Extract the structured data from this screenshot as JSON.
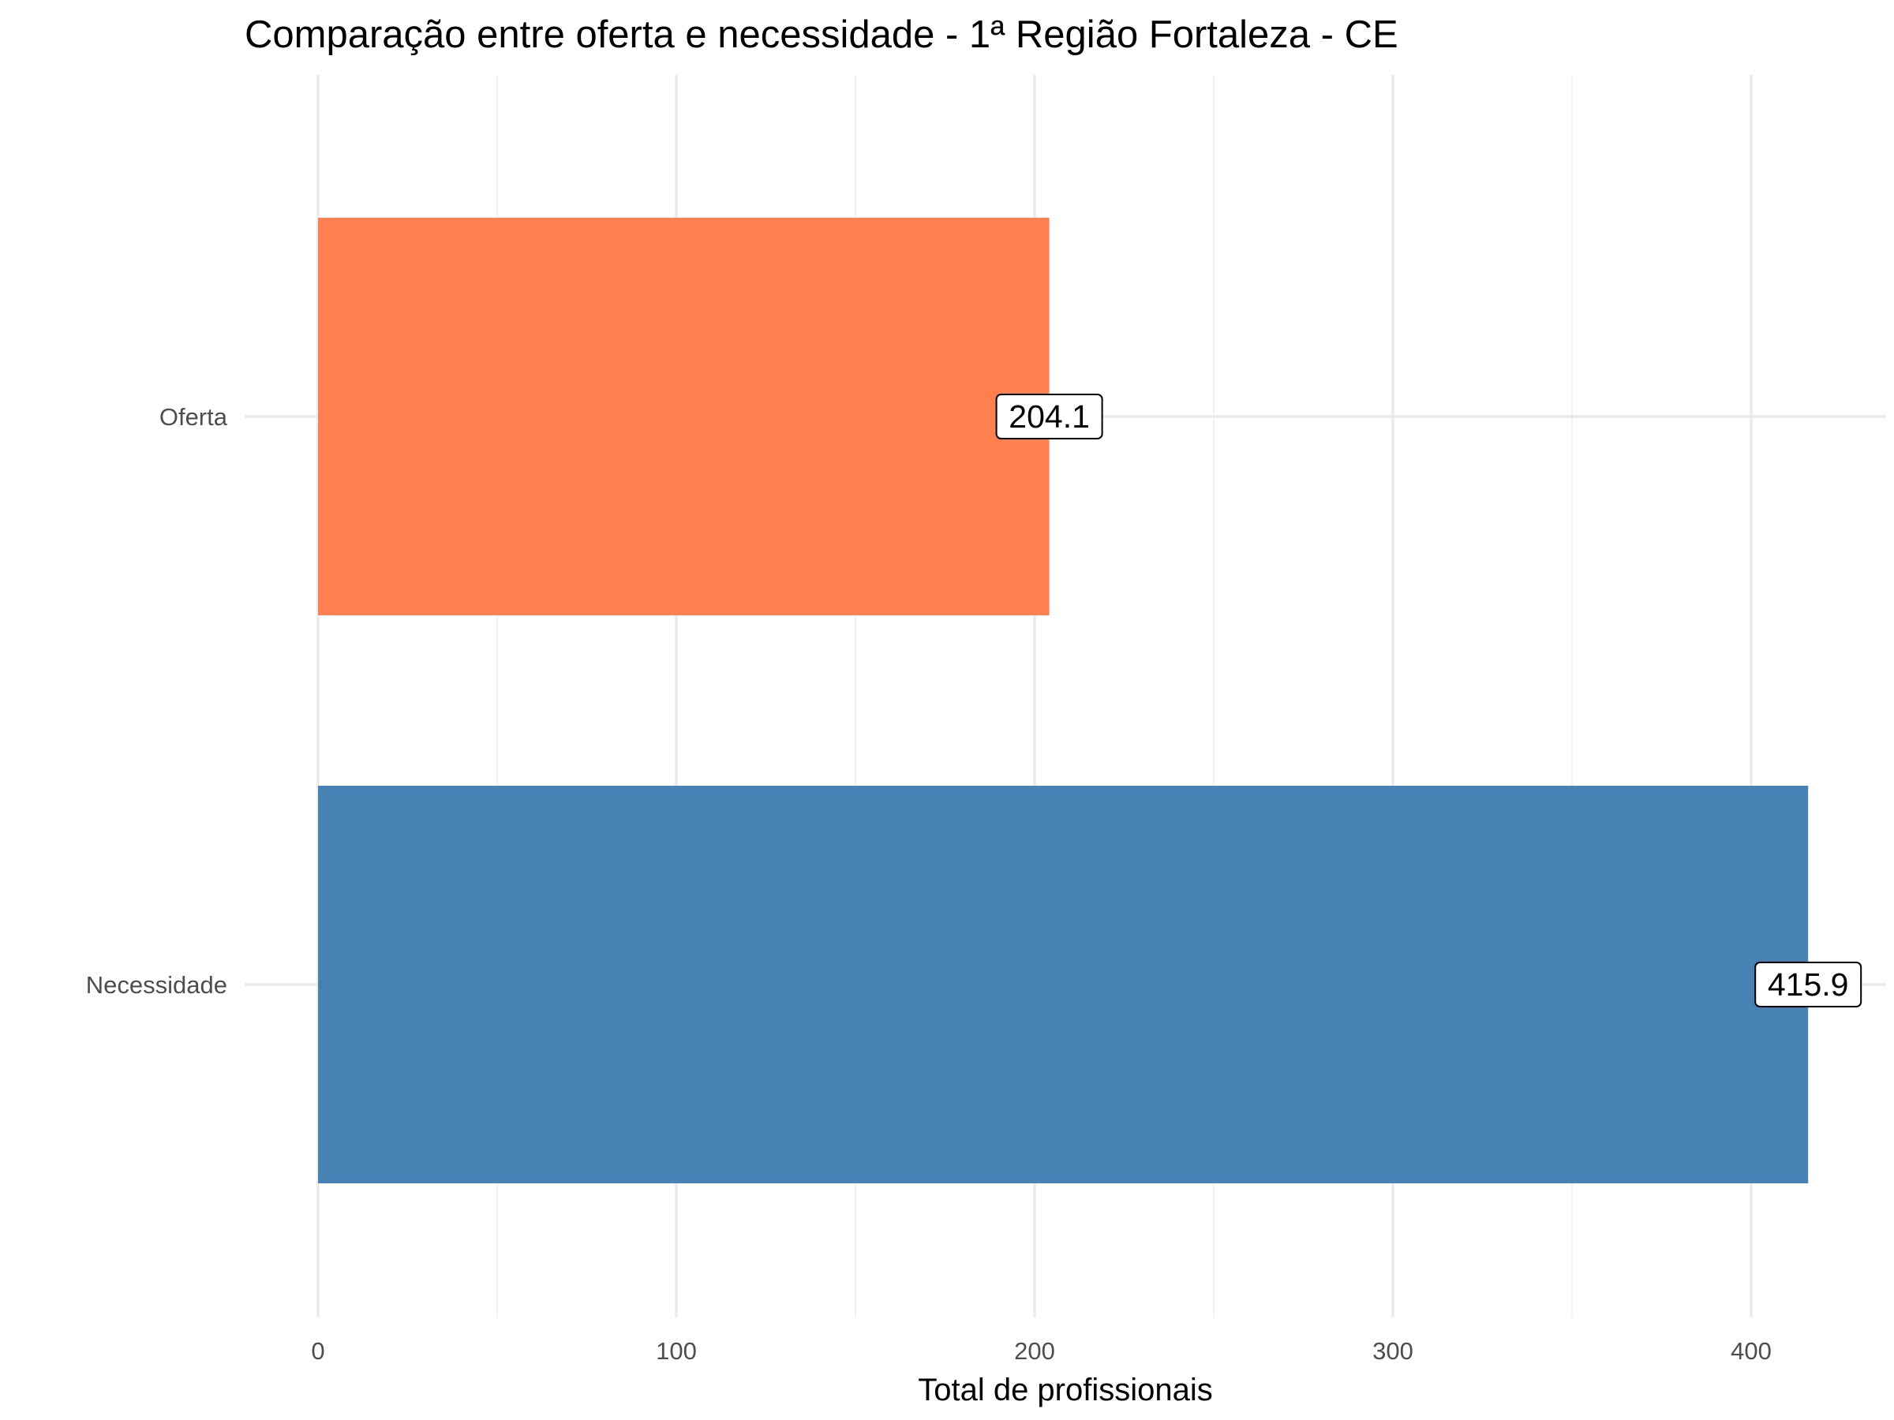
{
  "chart_data": {
    "type": "bar",
    "orientation": "horizontal",
    "title": "Comparação entre oferta e necessidade - 1ª Região Fortaleza - CE",
    "xlabel": "Total de profissionais",
    "ylabel": "",
    "categories": [
      "Oferta",
      "Necessidade"
    ],
    "values": [
      204.1,
      415.9
    ],
    "data_labels": [
      "204.1",
      "415.9"
    ],
    "colors": [
      "#FF7F50",
      "#4682B4"
    ],
    "xlim": [
      0,
      437
    ],
    "x_ticks": [
      0,
      100,
      200,
      300,
      400
    ],
    "x_tick_labels": [
      "0",
      "100",
      "200",
      "300",
      "400"
    ],
    "grid": true,
    "legend": "none"
  }
}
